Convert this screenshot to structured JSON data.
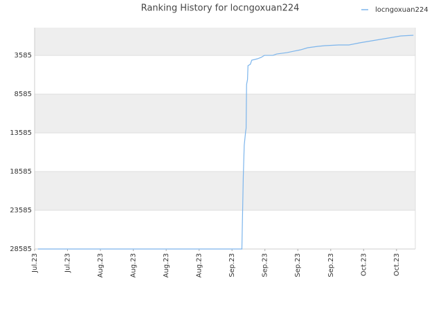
{
  "chart_data": {
    "type": "line",
    "title": "Ranking History for locngoxuan224",
    "x": [
      0.7,
      44.1,
      44.3,
      44.4,
      44.6,
      44.9,
      45,
      45.1,
      45.3,
      45.4,
      45.9,
      46.2,
      47.4,
      48.2,
      48.9,
      50.7,
      51.5,
      53.7,
      55.1,
      56.6,
      58.1,
      60.3,
      61.8,
      64.7,
      66.9,
      69.1,
      73.5,
      77.9,
      80.6
    ],
    "series": [
      {
        "name": "locngoxuan224",
        "color": "#7cb5ec",
        "values": [
          28585,
          28585,
          22330,
          19200,
          15190,
          13400,
          13000,
          7330,
          6700,
          4910,
          4730,
          4200,
          4020,
          3840,
          3580,
          3580,
          3400,
          3220,
          3040,
          2860,
          2590,
          2410,
          2320,
          2230,
          2230,
          1965,
          1520,
          1070,
          980
        ]
      }
    ],
    "xlim": [
      0,
      81
    ],
    "xticks": [
      {
        "value": 0,
        "label": "Jul.23"
      },
      {
        "value": 7,
        "label": "Jul.23"
      },
      {
        "value": 14,
        "label": "Aug.23"
      },
      {
        "value": 21,
        "label": "Aug.23"
      },
      {
        "value": 28,
        "label": "Aug.23"
      },
      {
        "value": 35,
        "label": "Aug.23"
      },
      {
        "value": 42,
        "label": "Sep.23"
      },
      {
        "value": 49,
        "label": "Sep.23"
      },
      {
        "value": 56,
        "label": "Sep.23"
      },
      {
        "value": 63,
        "label": "Sep.23"
      },
      {
        "value": 70,
        "label": "Oct.23"
      },
      {
        "value": 77,
        "label": "Oct.23"
      }
    ],
    "ylim": [
      28585,
      0
    ],
    "yticks": [
      3585,
      8585,
      13585,
      18585,
      23585,
      28585
    ],
    "grid": true,
    "legend": "top-right"
  }
}
